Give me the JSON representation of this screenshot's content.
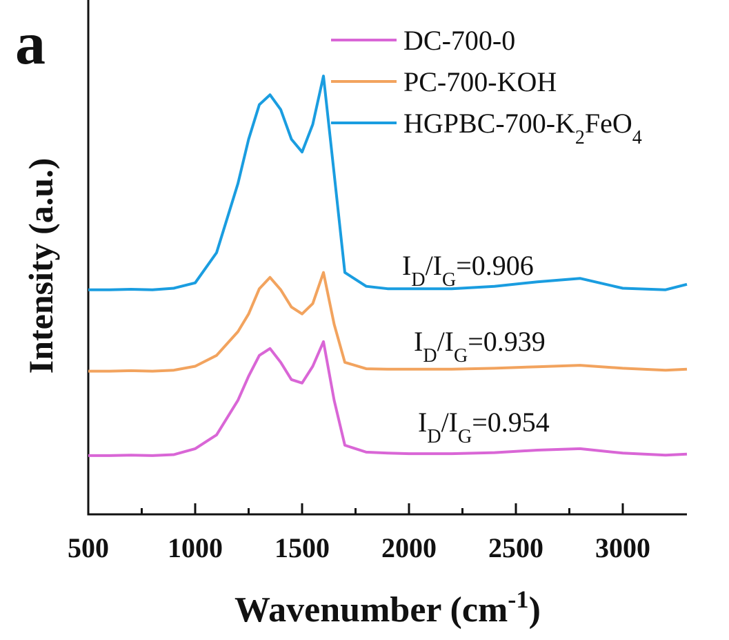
{
  "chart_data": {
    "type": "line",
    "panel_label": "a",
    "xlabel": "Wavenumber (cm-1)",
    "ylabel": "Intensity (a.u.)",
    "xlim": [
      500,
      3300
    ],
    "xticks": [
      500,
      1000,
      1500,
      2000,
      2500,
      3000
    ],
    "ylim": [
      0,
      100
    ],
    "x": [
      500,
      600,
      700,
      800,
      900,
      1000,
      1100,
      1200,
      1250,
      1300,
      1350,
      1400,
      1450,
      1500,
      1550,
      1600,
      1650,
      1700,
      1800,
      1900,
      2000,
      2200,
      2400,
      2600,
      2800,
      3000,
      3200,
      3300
    ],
    "series": [
      {
        "name": "DC-700-0",
        "color": "#d966d6",
        "values": [
          11.9,
          11.9,
          12.0,
          11.9,
          12.1,
          13.3,
          16.1,
          23.1,
          28,
          32.2,
          33.6,
          30.8,
          27.3,
          26.6,
          30,
          35,
          23.1,
          14,
          12.6,
          12.4,
          12.3,
          12.3,
          12.5,
          13,
          13.3,
          12.4,
          12.0,
          12.2
        ]
      },
      {
        "name": "PC-700-KOH",
        "color": "#f2a35e",
        "values": [
          29,
          29,
          29.1,
          29,
          29.2,
          30,
          32.2,
          37,
          40.6,
          45.7,
          48,
          45.5,
          42,
          40.6,
          42.7,
          49,
          38.5,
          30.8,
          29.5,
          29.4,
          29.4,
          29.4,
          29.6,
          29.9,
          30.2,
          29.6,
          29.2,
          29.4
        ]
      },
      {
        "name": "HGPBC-700-K2FeO4",
        "color": "#1a9de0",
        "values": [
          45.5,
          45.5,
          45.6,
          45.5,
          45.8,
          46.9,
          53,
          67,
          76,
          83,
          85,
          82,
          76,
          73.4,
          79,
          88.8,
          69,
          49,
          46.2,
          45.7,
          45.7,
          45.7,
          46.2,
          47.1,
          47.8,
          45.8,
          45.5,
          46.6
        ]
      }
    ],
    "annotations": [
      "ID/IG=0.906",
      "ID/IG=0.939",
      "ID/IG=0.954"
    ]
  }
}
